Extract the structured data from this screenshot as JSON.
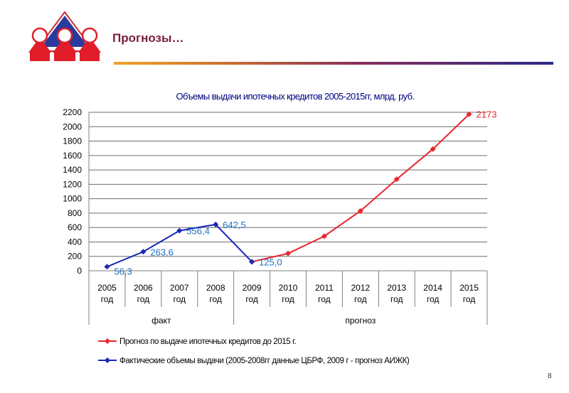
{
  "slide": {
    "title": "Прогнозы…",
    "page_number": "8"
  },
  "chart_data": {
    "type": "line",
    "title": "Объемы выдачи ипотечных кредитов 2005-2015гг, млрд. руб.",
    "categories": [
      "2005 год",
      "2006 год",
      "2007 год",
      "2008 год",
      "2009 год",
      "2010 год",
      "2011 год",
      "2012 год",
      "2013 год",
      "2014 год",
      "2015 год"
    ],
    "category_lines": [
      [
        "2005",
        "год"
      ],
      [
        "2006",
        "год"
      ],
      [
        "2007",
        "год"
      ],
      [
        "2008",
        "год"
      ],
      [
        "2009",
        "год"
      ],
      [
        "2010",
        "год"
      ],
      [
        "2011",
        "год"
      ],
      [
        "2012",
        "год"
      ],
      [
        "2013",
        "год"
      ],
      [
        "2014",
        "год"
      ],
      [
        "2015",
        "год"
      ]
    ],
    "groups": [
      {
        "label": "факт",
        "from": 0,
        "to": 3
      },
      {
        "label": "прогноз",
        "from": 4,
        "to": 10
      }
    ],
    "ylim": [
      0,
      2200
    ],
    "yticks": [
      0,
      200,
      400,
      600,
      800,
      1000,
      1200,
      1400,
      1600,
      1800,
      2000,
      2200
    ],
    "grid": true,
    "legend_position": "bottom",
    "series": [
      {
        "name": "Прогноз по выдаче ипотечных кредитов до 2015 г.",
        "color": "#e8262d",
        "marker": "diamond",
        "values": [
          null,
          null,
          null,
          null,
          125,
          240,
          480,
          830,
          1270,
          1690,
          2173
        ]
      },
      {
        "name": "Фактические объемы выдачи (2005-2008гг данные ЦБРФ, 2009 г - прогноз АИЖК)",
        "color": "#1b27b8",
        "marker": "diamond",
        "values": [
          56.3,
          263.6,
          556.4,
          642.5,
          125.0,
          null,
          null,
          null,
          null,
          null,
          null
        ]
      }
    ],
    "data_labels": [
      {
        "series": 1,
        "index": 0,
        "text": "56,3",
        "color": "#1f6ec2"
      },
      {
        "series": 1,
        "index": 1,
        "text": "263,6",
        "color": "#1f6ec2"
      },
      {
        "series": 1,
        "index": 2,
        "text": "556,4",
        "color": "#1f6ec2"
      },
      {
        "series": 1,
        "index": 3,
        "text": "642,5",
        "color": "#1f6ec2"
      },
      {
        "series": 1,
        "index": 4,
        "text": "125,0",
        "color": "#1f6ec2"
      },
      {
        "series": 0,
        "index": 10,
        "text": "2173",
        "color": "#e8262d"
      }
    ]
  }
}
